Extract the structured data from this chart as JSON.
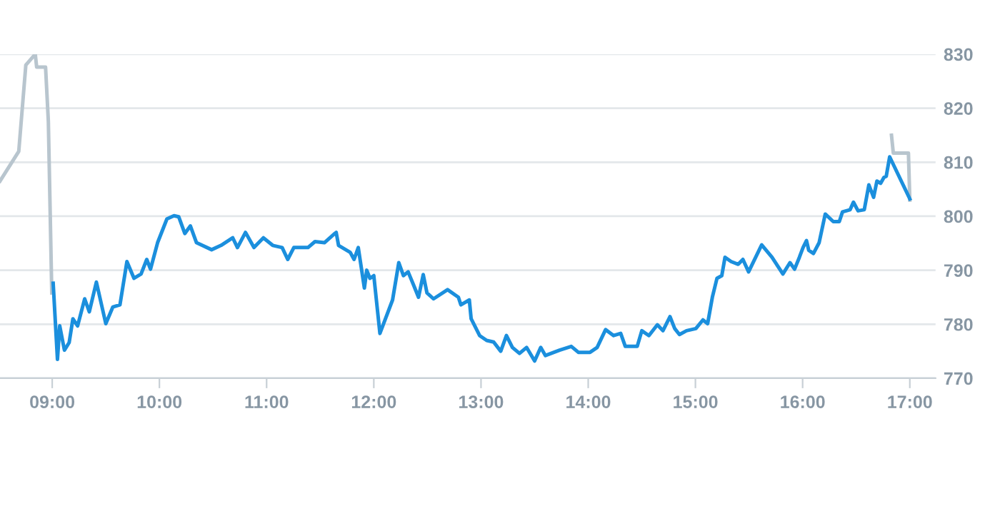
{
  "chart_data": {
    "type": "line",
    "xlim": [
      8.513,
      17.24
    ],
    "xticks": [
      {
        "value": 9,
        "label": "09:00"
      },
      {
        "value": 10,
        "label": "10:00"
      },
      {
        "value": 11,
        "label": "11:00"
      },
      {
        "value": 12,
        "label": "12:00"
      },
      {
        "value": 13,
        "label": "13:00"
      },
      {
        "value": 14,
        "label": "14:00"
      },
      {
        "value": 15,
        "label": "15:00"
      },
      {
        "value": 16,
        "label": "16:00"
      },
      {
        "value": 17,
        "label": "17:00"
      }
    ],
    "ylim": [
      770,
      830
    ],
    "yticks": [
      770,
      780,
      790,
      800,
      810,
      820,
      830
    ],
    "grid": "y",
    "marker": "none",
    "line_style": "solid",
    "series": [
      {
        "color": "#b8c5ce",
        "x": [
          8.513,
          8.688,
          8.754,
          8.842,
          8.855,
          8.938,
          8.964,
          8.996
        ],
        "values": [
          806.5,
          812,
          828,
          830,
          827.6,
          827.6,
          817.6,
          785.8
        ]
      },
      {
        "color": "#b8c5ce",
        "x": [
          16.829,
          16.846,
          16.987,
          17.0
        ],
        "values": [
          815,
          811.7,
          811.7,
          803
        ]
      },
      {
        "color": "#1b8fdd",
        "x": [
          9.009,
          9.049,
          9.07,
          9.114,
          9.158,
          9.193,
          9.237,
          9.303,
          9.346,
          9.412,
          9.5,
          9.566,
          9.632,
          9.697,
          9.763,
          9.829,
          9.882,
          9.917,
          9.983,
          10.07,
          10.136,
          10.18,
          10.237,
          10.289,
          10.346,
          10.487,
          10.575,
          10.684,
          10.728,
          10.803,
          10.882,
          10.97,
          11.057,
          11.145,
          11.197,
          11.254,
          11.386,
          11.451,
          11.539,
          11.636,
          11.649,
          11.671,
          11.78,
          11.816,
          11.855,
          11.912,
          11.934,
          11.964,
          12.0,
          12.057,
          12.175,
          12.233,
          12.276,
          12.32,
          12.372,
          12.417,
          12.461,
          12.496,
          12.557,
          12.688,
          12.789,
          12.812,
          12.891,
          12.908,
          12.987,
          13.053,
          13.118,
          13.184,
          13.237,
          13.293,
          13.359,
          13.425,
          13.5,
          13.557,
          13.601,
          13.733,
          13.842,
          13.908,
          14.017,
          14.083,
          14.162,
          14.237,
          14.303,
          14.346,
          14.457,
          14.5,
          14.566,
          14.645,
          14.697,
          14.763,
          14.807,
          14.851,
          14.917,
          15.004,
          15.07,
          15.114,
          15.158,
          15.201,
          15.246,
          15.276,
          15.333,
          15.399,
          15.443,
          15.496,
          15.618,
          15.714,
          15.816,
          15.882,
          15.925,
          15.97,
          16.004,
          16.036,
          16.057,
          16.101,
          16.154,
          16.211,
          16.286,
          16.342,
          16.372,
          16.443,
          16.474,
          16.517,
          16.575,
          16.618,
          16.662,
          16.693,
          16.728,
          16.759,
          16.78,
          16.812,
          17.0
        ],
        "values": [
          787.6,
          773.5,
          779.7,
          775.2,
          776.6,
          781,
          779.7,
          784.7,
          782.3,
          787.8,
          780.1,
          783.2,
          783.6,
          791.6,
          788.5,
          789.3,
          792,
          790.2,
          795.1,
          799.5,
          800.1,
          799.9,
          796.8,
          798.2,
          795.1,
          793.8,
          794.6,
          796,
          794.2,
          797,
          794.2,
          796,
          794.6,
          794.2,
          792,
          794.2,
          794.2,
          795.3,
          795.1,
          796.8,
          797,
          794.6,
          793.3,
          792,
          794.2,
          786.7,
          790,
          788.5,
          789,
          778.3,
          784.5,
          791.4,
          789,
          789.7,
          787.2,
          785,
          789.2,
          785.8,
          784.7,
          786.4,
          785,
          783.6,
          784.5,
          781,
          777.9,
          777,
          776.7,
          775,
          777.9,
          775.7,
          774.6,
          775.7,
          773.2,
          775.7,
          774.2,
          775.2,
          775.9,
          774.8,
          774.8,
          775.7,
          779,
          777.9,
          778.3,
          775.9,
          775.9,
          778.8,
          777.9,
          779.9,
          778.8,
          781.4,
          779.2,
          778.1,
          778.8,
          779.2,
          780.8,
          780.1,
          785,
          788.5,
          789,
          792.4,
          791.6,
          791.1,
          792,
          789.7,
          794.7,
          792.4,
          789.3,
          791.4,
          790.2,
          792.4,
          794.2,
          795.5,
          793.7,
          793.1,
          795.1,
          800.4,
          799,
          799,
          800.8,
          801.2,
          802.6,
          801,
          801.2,
          805.8,
          803.5,
          806.5,
          806.1,
          807.2,
          807.4,
          811,
          803.2
        ]
      }
    ]
  }
}
